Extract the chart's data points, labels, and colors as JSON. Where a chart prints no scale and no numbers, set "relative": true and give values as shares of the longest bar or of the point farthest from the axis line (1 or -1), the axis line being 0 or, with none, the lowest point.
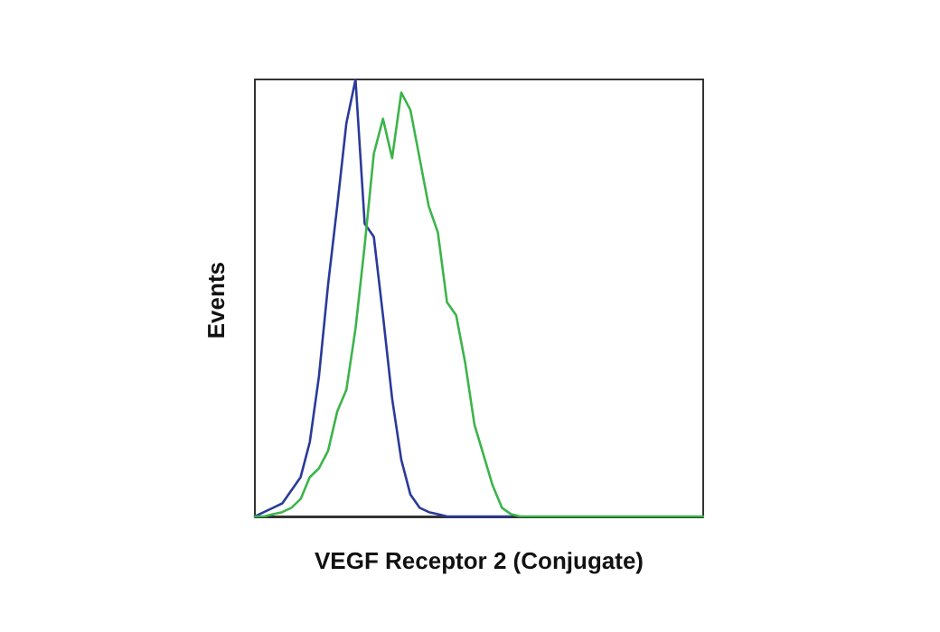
{
  "chart_data": {
    "type": "line",
    "relative": true,
    "xlabel": "VEGF Receptor 2 (Conjugate)",
    "ylabel": "Events",
    "grid": false,
    "line_style": "solid",
    "categories": [
      null,
      null,
      null,
      null,
      null,
      null,
      null,
      null,
      null,
      null,
      null,
      null,
      null,
      null,
      null,
      null,
      null,
      null,
      null,
      null,
      null,
      null,
      null,
      null,
      null,
      null,
      null,
      null,
      null,
      null,
      null,
      null,
      null,
      null,
      null,
      null,
      null,
      null,
      null,
      null,
      null,
      null,
      null,
      null,
      null,
      null,
      null,
      null,
      null,
      null
    ],
    "series": [
      {
        "color": "#2a3a9a",
        "values": [
          0,
          0.01,
          0.02,
          0.03,
          0.06,
          0.09,
          0.17,
          0.32,
          0.53,
          0.71,
          0.9,
          1.0,
          0.67,
          0.64,
          0.46,
          0.27,
          0.13,
          0.05,
          0.02,
          0.01,
          0.005,
          0,
          0,
          0,
          0,
          0,
          0,
          0,
          0,
          null,
          null,
          null,
          null,
          null,
          null,
          null,
          null,
          null,
          null,
          null,
          null,
          null,
          null,
          null,
          null,
          null,
          null,
          null,
          null,
          null
        ]
      },
      {
        "color": "#3cb44a",
        "values": [
          0,
          0,
          0.005,
          0.01,
          0.02,
          0.04,
          0.09,
          0.11,
          0.15,
          0.24,
          0.29,
          0.43,
          0.62,
          0.83,
          0.91,
          0.82,
          0.97,
          0.93,
          0.82,
          0.71,
          0.65,
          0.49,
          0.46,
          0.35,
          0.21,
          0.14,
          0.07,
          0.02,
          0.005,
          0,
          0,
          0,
          0,
          0,
          0,
          0,
          0,
          0,
          0,
          0,
          0,
          0,
          0,
          0,
          0,
          0,
          0,
          0,
          0,
          0
        ]
      }
    ]
  }
}
